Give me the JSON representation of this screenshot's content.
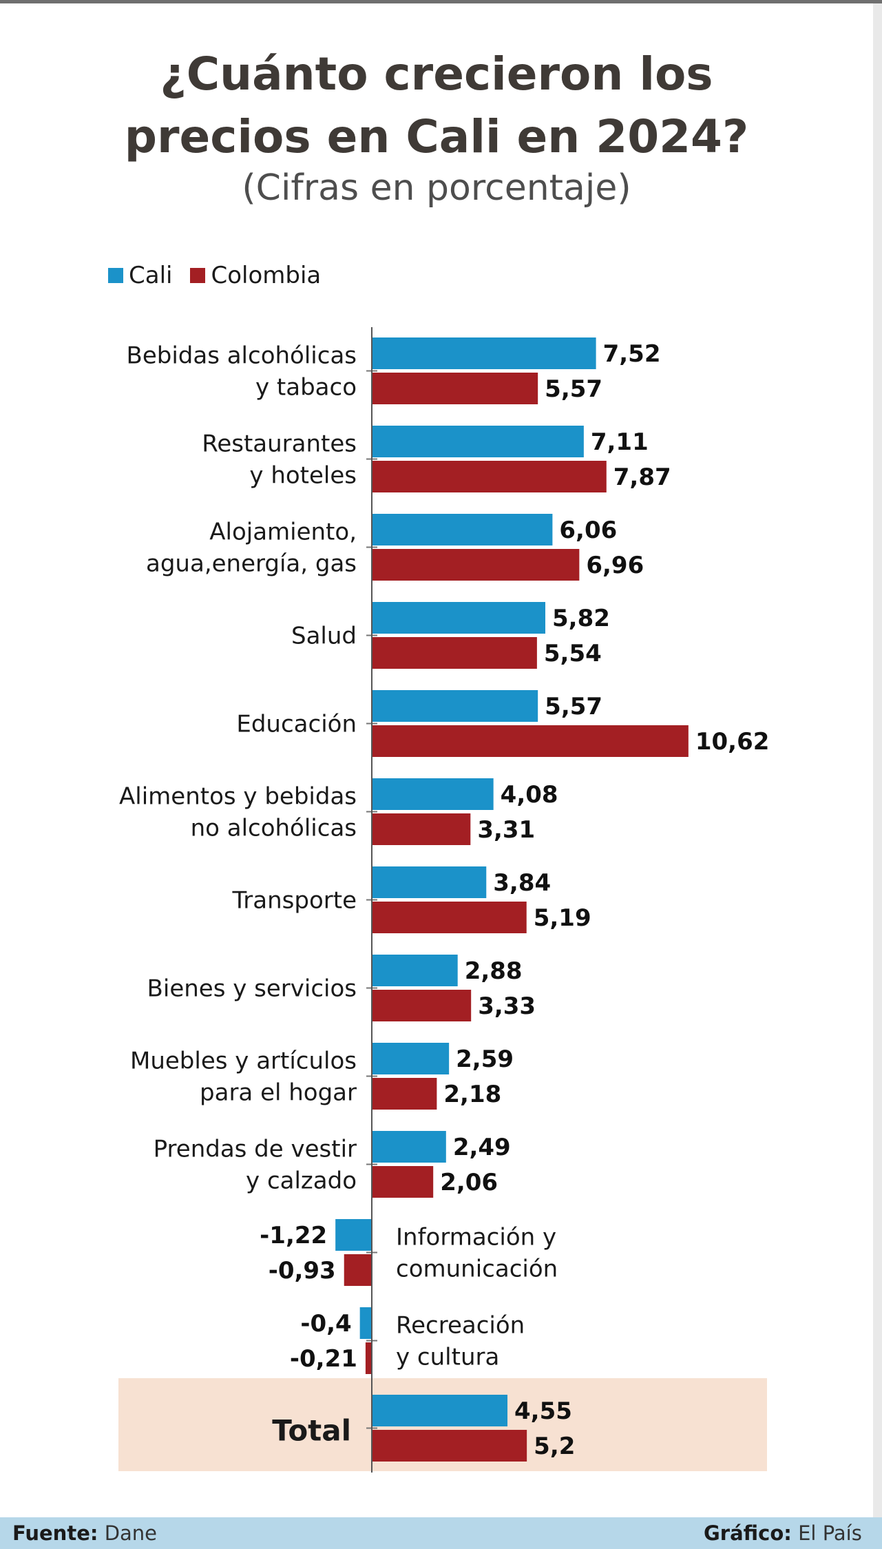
{
  "title_line1": "¿Cuánto crecieron los",
  "title_line2": "precios en Cali en 2024?",
  "subtitle": "(Cifras en porcentaje)",
  "legend": [
    {
      "label": "Cali",
      "color": "#1b92c9"
    },
    {
      "label": "Colombia",
      "color": "#a31f23"
    }
  ],
  "footer": {
    "source_label": "Fuente:",
    "source_value": "Dane",
    "credit_label": "Gráfico:",
    "credit_value": "El País"
  },
  "colors": {
    "cali": "#1b92c9",
    "colombia": "#a31f23",
    "total_band": "#f7e1d2",
    "axis": "#555555"
  },
  "chart_data": {
    "type": "bar",
    "orientation": "horizontal",
    "title": "¿Cuánto crecieron los precios en Cali en 2024?",
    "subtitle": "(Cifras en porcentaje)",
    "series": [
      {
        "name": "Cali",
        "values": [
          7.52,
          7.11,
          6.06,
          5.82,
          5.57,
          4.08,
          3.84,
          2.88,
          2.59,
          2.49,
          -1.22,
          -0.4,
          4.55
        ]
      },
      {
        "name": "Colombia",
        "values": [
          5.57,
          7.87,
          6.96,
          5.54,
          10.62,
          3.31,
          5.19,
          3.33,
          2.18,
          2.06,
          -0.93,
          -0.21,
          5.2
        ]
      }
    ],
    "categories": [
      [
        "Bebidas alcohólicas",
        "y tabaco"
      ],
      [
        "Restaurantes",
        "y hoteles"
      ],
      [
        "Alojamiento,",
        "agua,energía, gas"
      ],
      [
        "Salud"
      ],
      [
        "Educación"
      ],
      [
        "Alimentos y bebidas",
        "no alcohólicas"
      ],
      [
        "Transporte"
      ],
      [
        "Bienes y servicios"
      ],
      [
        "Muebles y artículos",
        "para el hogar"
      ],
      [
        "Prendas de vestir",
        "y calzado"
      ],
      [
        "Información y",
        "comunicación"
      ],
      [
        "Recreación",
        "y cultura"
      ],
      [
        "Total"
      ]
    ],
    "value_labels": {
      "Cali": [
        "7,52",
        "7,11",
        "6,06",
        "5,82",
        "5,57",
        "4,08",
        "3,84",
        "2,88",
        "2,59",
        "2,49",
        "-1,22",
        "-0,4",
        "4,55"
      ],
      "Colombia": [
        "5,57",
        "7,87",
        "6,96",
        "5,54",
        "10,62",
        "3,31",
        "5,19",
        "3,33",
        "2,18",
        "2,06",
        "-0,93",
        "-0,21",
        "5,2"
      ]
    },
    "xlim": [
      -1.22,
      10.62
    ],
    "highlight_category": "Total"
  }
}
